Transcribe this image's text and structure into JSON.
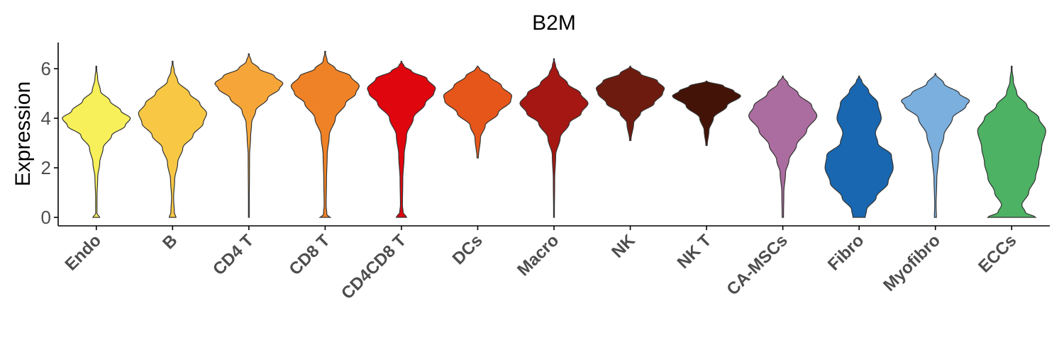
{
  "chart_data": {
    "type": "violin",
    "title": "B2M",
    "ylabel": "Expression",
    "xlabel": "",
    "ylim": [
      -0.3,
      7.0
    ],
    "yticks": [
      0,
      2,
      4,
      6
    ],
    "grid": false,
    "legend": "none",
    "categories": [
      {
        "name": "Endo",
        "color": "#F7F05A",
        "min": 0,
        "max": 6.1,
        "profile": [
          [
            0,
            0.1
          ],
          [
            0.15,
            0.02
          ],
          [
            0.8,
            0.02
          ],
          [
            1.6,
            0.04
          ],
          [
            2.2,
            0.1
          ],
          [
            2.8,
            0.2
          ],
          [
            3.3,
            0.45
          ],
          [
            3.7,
            0.85
          ],
          [
            4.0,
            1.0
          ],
          [
            4.3,
            0.72
          ],
          [
            4.7,
            0.4
          ],
          [
            5.1,
            0.12
          ],
          [
            5.6,
            0.04
          ],
          [
            6.1,
            0
          ]
        ]
      },
      {
        "name": "B",
        "color": "#F8C845",
        "min": 0,
        "max": 6.3,
        "profile": [
          [
            0,
            0.1
          ],
          [
            0.2,
            0.05
          ],
          [
            0.8,
            0.03
          ],
          [
            1.5,
            0.06
          ],
          [
            2.2,
            0.15
          ],
          [
            2.8,
            0.3
          ],
          [
            3.3,
            0.6
          ],
          [
            3.8,
            0.9
          ],
          [
            4.2,
            1.0
          ],
          [
            4.6,
            0.8
          ],
          [
            5.0,
            0.5
          ],
          [
            5.5,
            0.15
          ],
          [
            5.9,
            0.05
          ],
          [
            6.3,
            0
          ]
        ]
      },
      {
        "name": "CD4 T",
        "color": "#F6A639",
        "min": 0,
        "max": 6.6,
        "profile": [
          [
            0,
            0.01
          ],
          [
            2.5,
            0.02
          ],
          [
            3.2,
            0.05
          ],
          [
            3.8,
            0.08
          ],
          [
            4.3,
            0.2
          ],
          [
            4.8,
            0.55
          ],
          [
            5.2,
            0.9
          ],
          [
            5.4,
            1.0
          ],
          [
            5.7,
            0.75
          ],
          [
            6.0,
            0.3
          ],
          [
            6.3,
            0.07
          ],
          [
            6.6,
            0
          ]
        ]
      },
      {
        "name": "CD8 T",
        "color": "#EF8226",
        "min": 0,
        "max": 6.7,
        "profile": [
          [
            0,
            0.15
          ],
          [
            0.1,
            0.05
          ],
          [
            0.5,
            0.03
          ],
          [
            1.5,
            0.04
          ],
          [
            2.5,
            0.06
          ],
          [
            3.3,
            0.12
          ],
          [
            4.0,
            0.3
          ],
          [
            4.6,
            0.6
          ],
          [
            5.0,
            0.9
          ],
          [
            5.3,
            1.0
          ],
          [
            5.7,
            0.75
          ],
          [
            6.0,
            0.3
          ],
          [
            6.3,
            0.06
          ],
          [
            6.7,
            0
          ]
        ]
      },
      {
        "name": "CD4CD8 T",
        "color": "#DF060E",
        "min": 0,
        "max": 6.3,
        "profile": [
          [
            0,
            0.15
          ],
          [
            0.2,
            0.05
          ],
          [
            0.5,
            0.03
          ],
          [
            1.5,
            0.04
          ],
          [
            2.5,
            0.08
          ],
          [
            3.3,
            0.15
          ],
          [
            4.0,
            0.35
          ],
          [
            4.6,
            0.7
          ],
          [
            5.0,
            0.95
          ],
          [
            5.2,
            1.0
          ],
          [
            5.6,
            0.75
          ],
          [
            5.9,
            0.3
          ],
          [
            6.1,
            0.08
          ],
          [
            6.3,
            0
          ]
        ]
      },
      {
        "name": "DCs",
        "color": "#E6561A",
        "min": 2.4,
        "max": 6.1,
        "profile": [
          [
            2.4,
            0.02
          ],
          [
            3.2,
            0.08
          ],
          [
            3.7,
            0.22
          ],
          [
            4.2,
            0.6
          ],
          [
            4.7,
            0.97
          ],
          [
            4.9,
            1.0
          ],
          [
            5.3,
            0.7
          ],
          [
            5.7,
            0.35
          ],
          [
            6.0,
            0.06
          ],
          [
            6.1,
            0
          ]
        ]
      },
      {
        "name": "Macro",
        "color": "#A41712",
        "min": 0,
        "max": 6.4,
        "profile": [
          [
            0,
            0.01
          ],
          [
            1.5,
            0.02
          ],
          [
            2.5,
            0.05
          ],
          [
            3.2,
            0.18
          ],
          [
            3.8,
            0.45
          ],
          [
            4.2,
            0.8
          ],
          [
            4.6,
            1.0
          ],
          [
            5.0,
            0.78
          ],
          [
            5.4,
            0.4
          ],
          [
            5.8,
            0.14
          ],
          [
            6.1,
            0.05
          ],
          [
            6.4,
            0
          ]
        ]
      },
      {
        "name": "NK",
        "color": "#6E1B0F",
        "min": 3.1,
        "max": 6.1,
        "profile": [
          [
            3.1,
            0.02
          ],
          [
            3.8,
            0.1
          ],
          [
            4.2,
            0.3
          ],
          [
            4.6,
            0.7
          ],
          [
            5.0,
            0.95
          ],
          [
            5.2,
            1.0
          ],
          [
            5.5,
            0.8
          ],
          [
            5.8,
            0.3
          ],
          [
            6.1,
            0
          ]
        ]
      },
      {
        "name": "NK T",
        "color": "#431308",
        "min": 2.9,
        "max": 5.5,
        "profile": [
          [
            2.9,
            0.02
          ],
          [
            3.5,
            0.07
          ],
          [
            4.0,
            0.2
          ],
          [
            4.5,
            0.6
          ],
          [
            4.9,
            1.0
          ],
          [
            5.1,
            0.8
          ],
          [
            5.3,
            0.5
          ],
          [
            5.5,
            0
          ]
        ]
      },
      {
        "name": "CA-MSCs",
        "color": "#AB6D9F",
        "min": 0,
        "max": 5.7,
        "profile": [
          [
            0,
            0.02
          ],
          [
            1.0,
            0.03
          ],
          [
            1.8,
            0.08
          ],
          [
            2.3,
            0.18
          ],
          [
            2.9,
            0.4
          ],
          [
            3.5,
            0.7
          ],
          [
            4.1,
            1.0
          ],
          [
            4.5,
            0.85
          ],
          [
            5.0,
            0.45
          ],
          [
            5.4,
            0.15
          ],
          [
            5.7,
            0
          ]
        ]
      },
      {
        "name": "Fibro",
        "color": "#1967B0",
        "min": 0,
        "max": 5.7,
        "profile": [
          [
            0,
            0.18
          ],
          [
            0.3,
            0.22
          ],
          [
            0.8,
            0.5
          ],
          [
            1.4,
            0.85
          ],
          [
            2.0,
            1.0
          ],
          [
            2.5,
            0.95
          ],
          [
            3.0,
            0.55
          ],
          [
            3.4,
            0.48
          ],
          [
            4.0,
            0.65
          ],
          [
            4.6,
            0.55
          ],
          [
            5.1,
            0.28
          ],
          [
            5.5,
            0.08
          ],
          [
            5.7,
            0
          ]
        ]
      },
      {
        "name": "Myofibro",
        "color": "#7AAFDE",
        "min": 0,
        "max": 5.8,
        "profile": [
          [
            0,
            0.03
          ],
          [
            0.5,
            0.02
          ],
          [
            1.5,
            0.04
          ],
          [
            2.5,
            0.1
          ],
          [
            3.3,
            0.25
          ],
          [
            4.0,
            0.5
          ],
          [
            4.5,
            0.9
          ],
          [
            4.7,
            1.0
          ],
          [
            5.0,
            0.7
          ],
          [
            5.4,
            0.25
          ],
          [
            5.8,
            0
          ]
        ]
      },
      {
        "name": "ECCs",
        "color": "#4DB264",
        "min": 0,
        "max": 6.1,
        "profile": [
          [
            0,
            0.7
          ],
          [
            0.2,
            0.4
          ],
          [
            0.5,
            0.3
          ],
          [
            1.0,
            0.5
          ],
          [
            1.6,
            0.7
          ],
          [
            2.2,
            0.8
          ],
          [
            2.8,
            0.88
          ],
          [
            3.5,
            1.0
          ],
          [
            4.0,
            0.8
          ],
          [
            4.5,
            0.45
          ],
          [
            5.0,
            0.15
          ],
          [
            5.5,
            0.05
          ],
          [
            6.1,
            0
          ]
        ]
      }
    ]
  }
}
